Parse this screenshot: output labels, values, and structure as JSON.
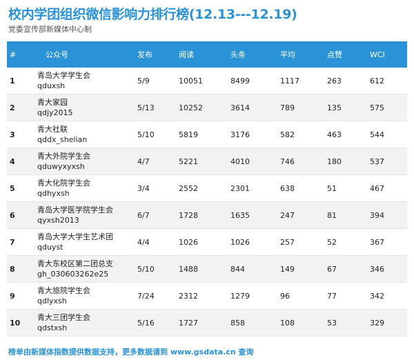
{
  "title": "校内学团组织微信影响力排行榜(12.13---12.19)",
  "subtitle": "党委宣传部新媒体中心制",
  "table": {
    "headers": {
      "rank": "#",
      "account": "公众号",
      "posts": "发布",
      "reads": "阅读",
      "headline": "头条",
      "average": "平均",
      "likes": "点赞",
      "wci": "WCI"
    },
    "rows": [
      {
        "rank": "1",
        "name": "青岛大学学生会",
        "id": "qduxsh",
        "posts": "5/9",
        "reads": "10051",
        "headline": "8499",
        "average": "1117",
        "likes": "263",
        "wci": "612"
      },
      {
        "rank": "2",
        "name": "青大家园",
        "id": "qdjy2015",
        "posts": "5/13",
        "reads": "10252",
        "headline": "3614",
        "average": "789",
        "likes": "135",
        "wci": "575"
      },
      {
        "rank": "3",
        "name": "青大社联",
        "id": "qddx_shelian",
        "posts": "5/10",
        "reads": "5819",
        "headline": "3176",
        "average": "582",
        "likes": "463",
        "wci": "544"
      },
      {
        "rank": "4",
        "name": "青大外院学生会",
        "id": "qduwyxyxsh",
        "posts": "4/7",
        "reads": "5221",
        "headline": "4010",
        "average": "746",
        "likes": "180",
        "wci": "537"
      },
      {
        "rank": "5",
        "name": "青大化院学生会",
        "id": "qdhyxsh",
        "posts": "3/4",
        "reads": "2552",
        "headline": "2301",
        "average": "638",
        "likes": "51",
        "wci": "467"
      },
      {
        "rank": "6",
        "name": "青岛大学医学院学生会",
        "id": "qyxsh2013",
        "posts": "6/7",
        "reads": "1728",
        "headline": "1635",
        "average": "247",
        "likes": "81",
        "wci": "394"
      },
      {
        "rank": "7",
        "name": "青岛大学大学生艺术团",
        "id": "qduyst",
        "posts": "4/4",
        "reads": "1026",
        "headline": "1026",
        "average": "257",
        "likes": "52",
        "wci": "367"
      },
      {
        "rank": "8",
        "name": "青大东校区第二团总支",
        "id": "gh_030603262e25",
        "posts": "5/10",
        "reads": "1488",
        "headline": "844",
        "average": "149",
        "likes": "67",
        "wci": "346"
      },
      {
        "rank": "9",
        "name": "青大旅院学生会",
        "id": "qdlyxsh",
        "posts": "7/24",
        "reads": "2312",
        "headline": "1279",
        "average": "96",
        "likes": "77",
        "wci": "342"
      },
      {
        "rank": "10",
        "name": "青大三团学生会",
        "id": "qdstxsh",
        "posts": "5/16",
        "reads": "1727",
        "headline": "858",
        "average": "108",
        "likes": "53",
        "wci": "329"
      }
    ]
  },
  "footer": "榜单由新媒体指数提供数据支持，更多数据请到 www.gsdata.cn 查询",
  "colors": {
    "accent": "#2a92d6",
    "stripe": "#f2f2f2"
  }
}
